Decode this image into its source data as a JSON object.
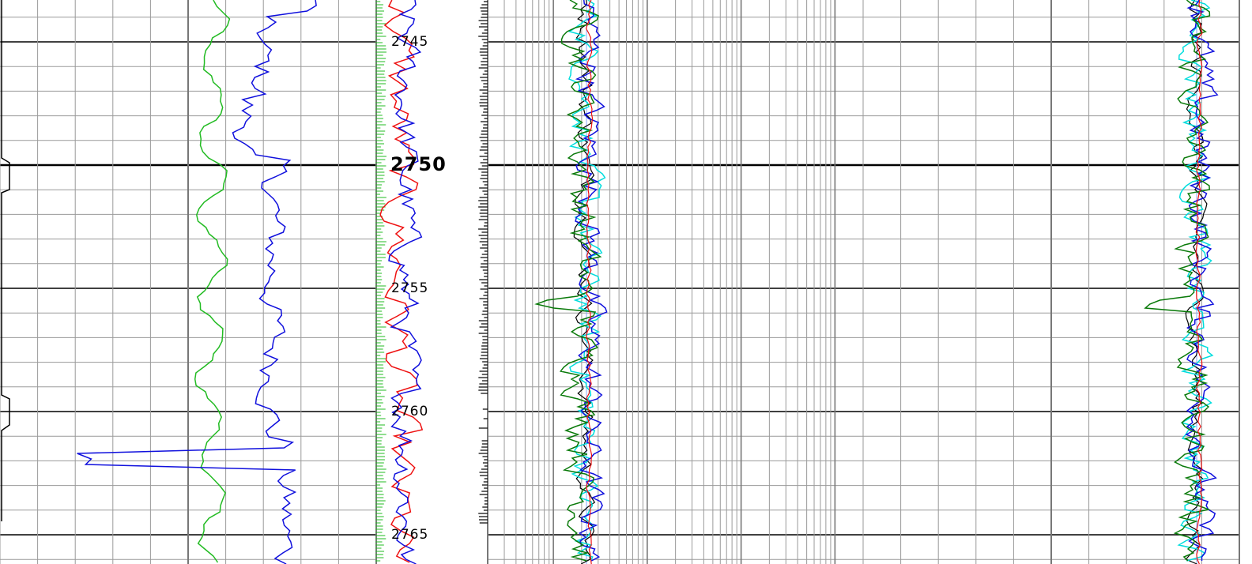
{
  "depth_labels": [
    "2745",
    "2750",
    "2755",
    "2760",
    "2765"
  ]
}
